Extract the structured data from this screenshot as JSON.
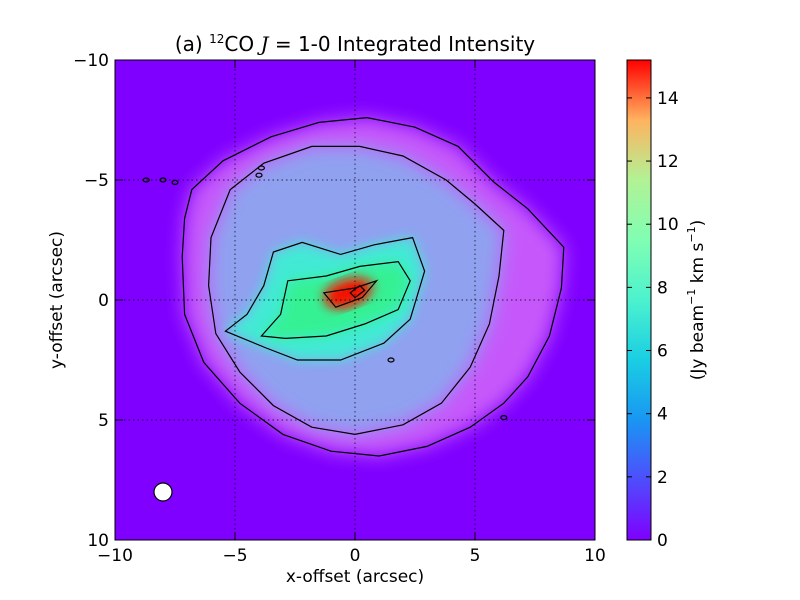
{
  "chart_data": {
    "type": "heatmap",
    "title_prefix": "(a) ",
    "title_iso": "12",
    "title_main": "CO ",
    "title_j": "J",
    "title_rest": " = 1-0 Integrated Intensity",
    "xlabel": "x-offset (arcsec)",
    "ylabel": "y-offset (arcsec)",
    "xlim": [
      -10,
      10
    ],
    "ylim": [
      -10,
      10
    ],
    "y_axis_inverted": true,
    "grid": true,
    "x_ticks": [
      -10,
      -5,
      0,
      5,
      10
    ],
    "x_tick_labels": [
      "−10",
      "−5",
      "0",
      "5",
      "10"
    ],
    "y_ticks": [
      -10,
      -5,
      0,
      5,
      10
    ],
    "y_tick_labels": [
      "−10",
      "−5",
      "0",
      "5",
      "10"
    ],
    "colorbar": {
      "label_pre": "(Jy beam",
      "label_sup1": "−1",
      "label_mid": " km s",
      "label_sup2": "−1",
      "label_post": ")",
      "range": [
        0,
        15.2
      ],
      "ticks": [
        0,
        2,
        4,
        6,
        8,
        10,
        12,
        14
      ],
      "tick_labels": [
        "0",
        "2",
        "4",
        "6",
        "8",
        "10",
        "12",
        "14"
      ],
      "colormap": "rainbow"
    },
    "peak": {
      "x": -0.3,
      "y": -0.3,
      "value": 15.0
    },
    "beam": {
      "x": -8.0,
      "y": 8.0,
      "diameter": 0.8
    },
    "contours": [
      {
        "level": 1.0,
        "points": [
          [
            -6.8,
            -4.6
          ],
          [
            -5.5,
            -5.8
          ],
          [
            -3.5,
            -6.8
          ],
          [
            -1.5,
            -7.4
          ],
          [
            0.5,
            -7.6
          ],
          [
            2.5,
            -7.2
          ],
          [
            4.3,
            -6.4
          ],
          [
            5.8,
            -4.9
          ],
          [
            7.2,
            -3.8
          ],
          [
            8.7,
            -2.2
          ],
          [
            8.6,
            -0.5
          ],
          [
            8.1,
            1.5
          ],
          [
            7.2,
            3.2
          ],
          [
            6.2,
            4.3
          ],
          [
            4.8,
            5.3
          ],
          [
            3.0,
            6.1
          ],
          [
            1.0,
            6.5
          ],
          [
            -1.0,
            6.3
          ],
          [
            -3.0,
            5.6
          ],
          [
            -4.8,
            4.3
          ],
          [
            -6.3,
            2.6
          ],
          [
            -7.1,
            0.6
          ],
          [
            -7.2,
            -1.8
          ],
          [
            -7.1,
            -3.4
          ]
        ]
      },
      {
        "level": 2.0,
        "points": [
          [
            -5.2,
            -4.6
          ],
          [
            -3.8,
            -5.7
          ],
          [
            -1.8,
            -6.4
          ],
          [
            0.2,
            -6.4
          ],
          [
            2.0,
            -6.0
          ],
          [
            3.8,
            -5.0
          ],
          [
            5.0,
            -4.0
          ],
          [
            6.2,
            -2.9
          ],
          [
            6.0,
            -1.0
          ],
          [
            5.6,
            1.0
          ],
          [
            4.8,
            2.8
          ],
          [
            3.6,
            4.3
          ],
          [
            2.0,
            5.2
          ],
          [
            0.0,
            5.6
          ],
          [
            -1.8,
            5.3
          ],
          [
            -3.4,
            4.4
          ],
          [
            -4.8,
            3.0
          ],
          [
            -5.8,
            1.4
          ],
          [
            -6.1,
            -0.6
          ],
          [
            -6.0,
            -2.6
          ]
        ]
      },
      {
        "level": 4.0,
        "points": [
          [
            -3.4,
            -2.0
          ],
          [
            -2.2,
            -2.4
          ],
          [
            -0.6,
            -1.9
          ],
          [
            0.8,
            -2.3
          ],
          [
            2.4,
            -2.6
          ],
          [
            2.9,
            -1.2
          ],
          [
            2.3,
            0.8
          ],
          [
            1.2,
            1.8
          ],
          [
            -0.6,
            2.5
          ],
          [
            -2.4,
            2.5
          ],
          [
            -3.7,
            2.0
          ],
          [
            -5.4,
            1.3
          ],
          [
            -4.5,
            0.6
          ],
          [
            -3.8,
            -0.6
          ]
        ]
      },
      {
        "level": 7.0,
        "points": [
          [
            -2.8,
            -0.8
          ],
          [
            -1.2,
            -1.0
          ],
          [
            0.2,
            -1.4
          ],
          [
            1.8,
            -1.6
          ],
          [
            2.3,
            -0.8
          ],
          [
            1.8,
            0.4
          ],
          [
            0.4,
            1.0
          ],
          [
            -1.2,
            1.5
          ],
          [
            -2.9,
            1.6
          ],
          [
            -3.9,
            1.5
          ],
          [
            -3.1,
            0.6
          ]
        ]
      },
      {
        "level": 11.0,
        "points": [
          [
            -1.3,
            -0.3
          ],
          [
            0.0,
            -0.5
          ],
          [
            0.9,
            -0.8
          ],
          [
            0.3,
            -0.1
          ],
          [
            -0.8,
            0.3
          ]
        ]
      },
      {
        "level": 14.0,
        "points": [
          [
            -0.2,
            -0.3
          ],
          [
            0.2,
            -0.6
          ],
          [
            0.4,
            -0.4
          ],
          [
            0.0,
            -0.1
          ]
        ]
      }
    ]
  }
}
